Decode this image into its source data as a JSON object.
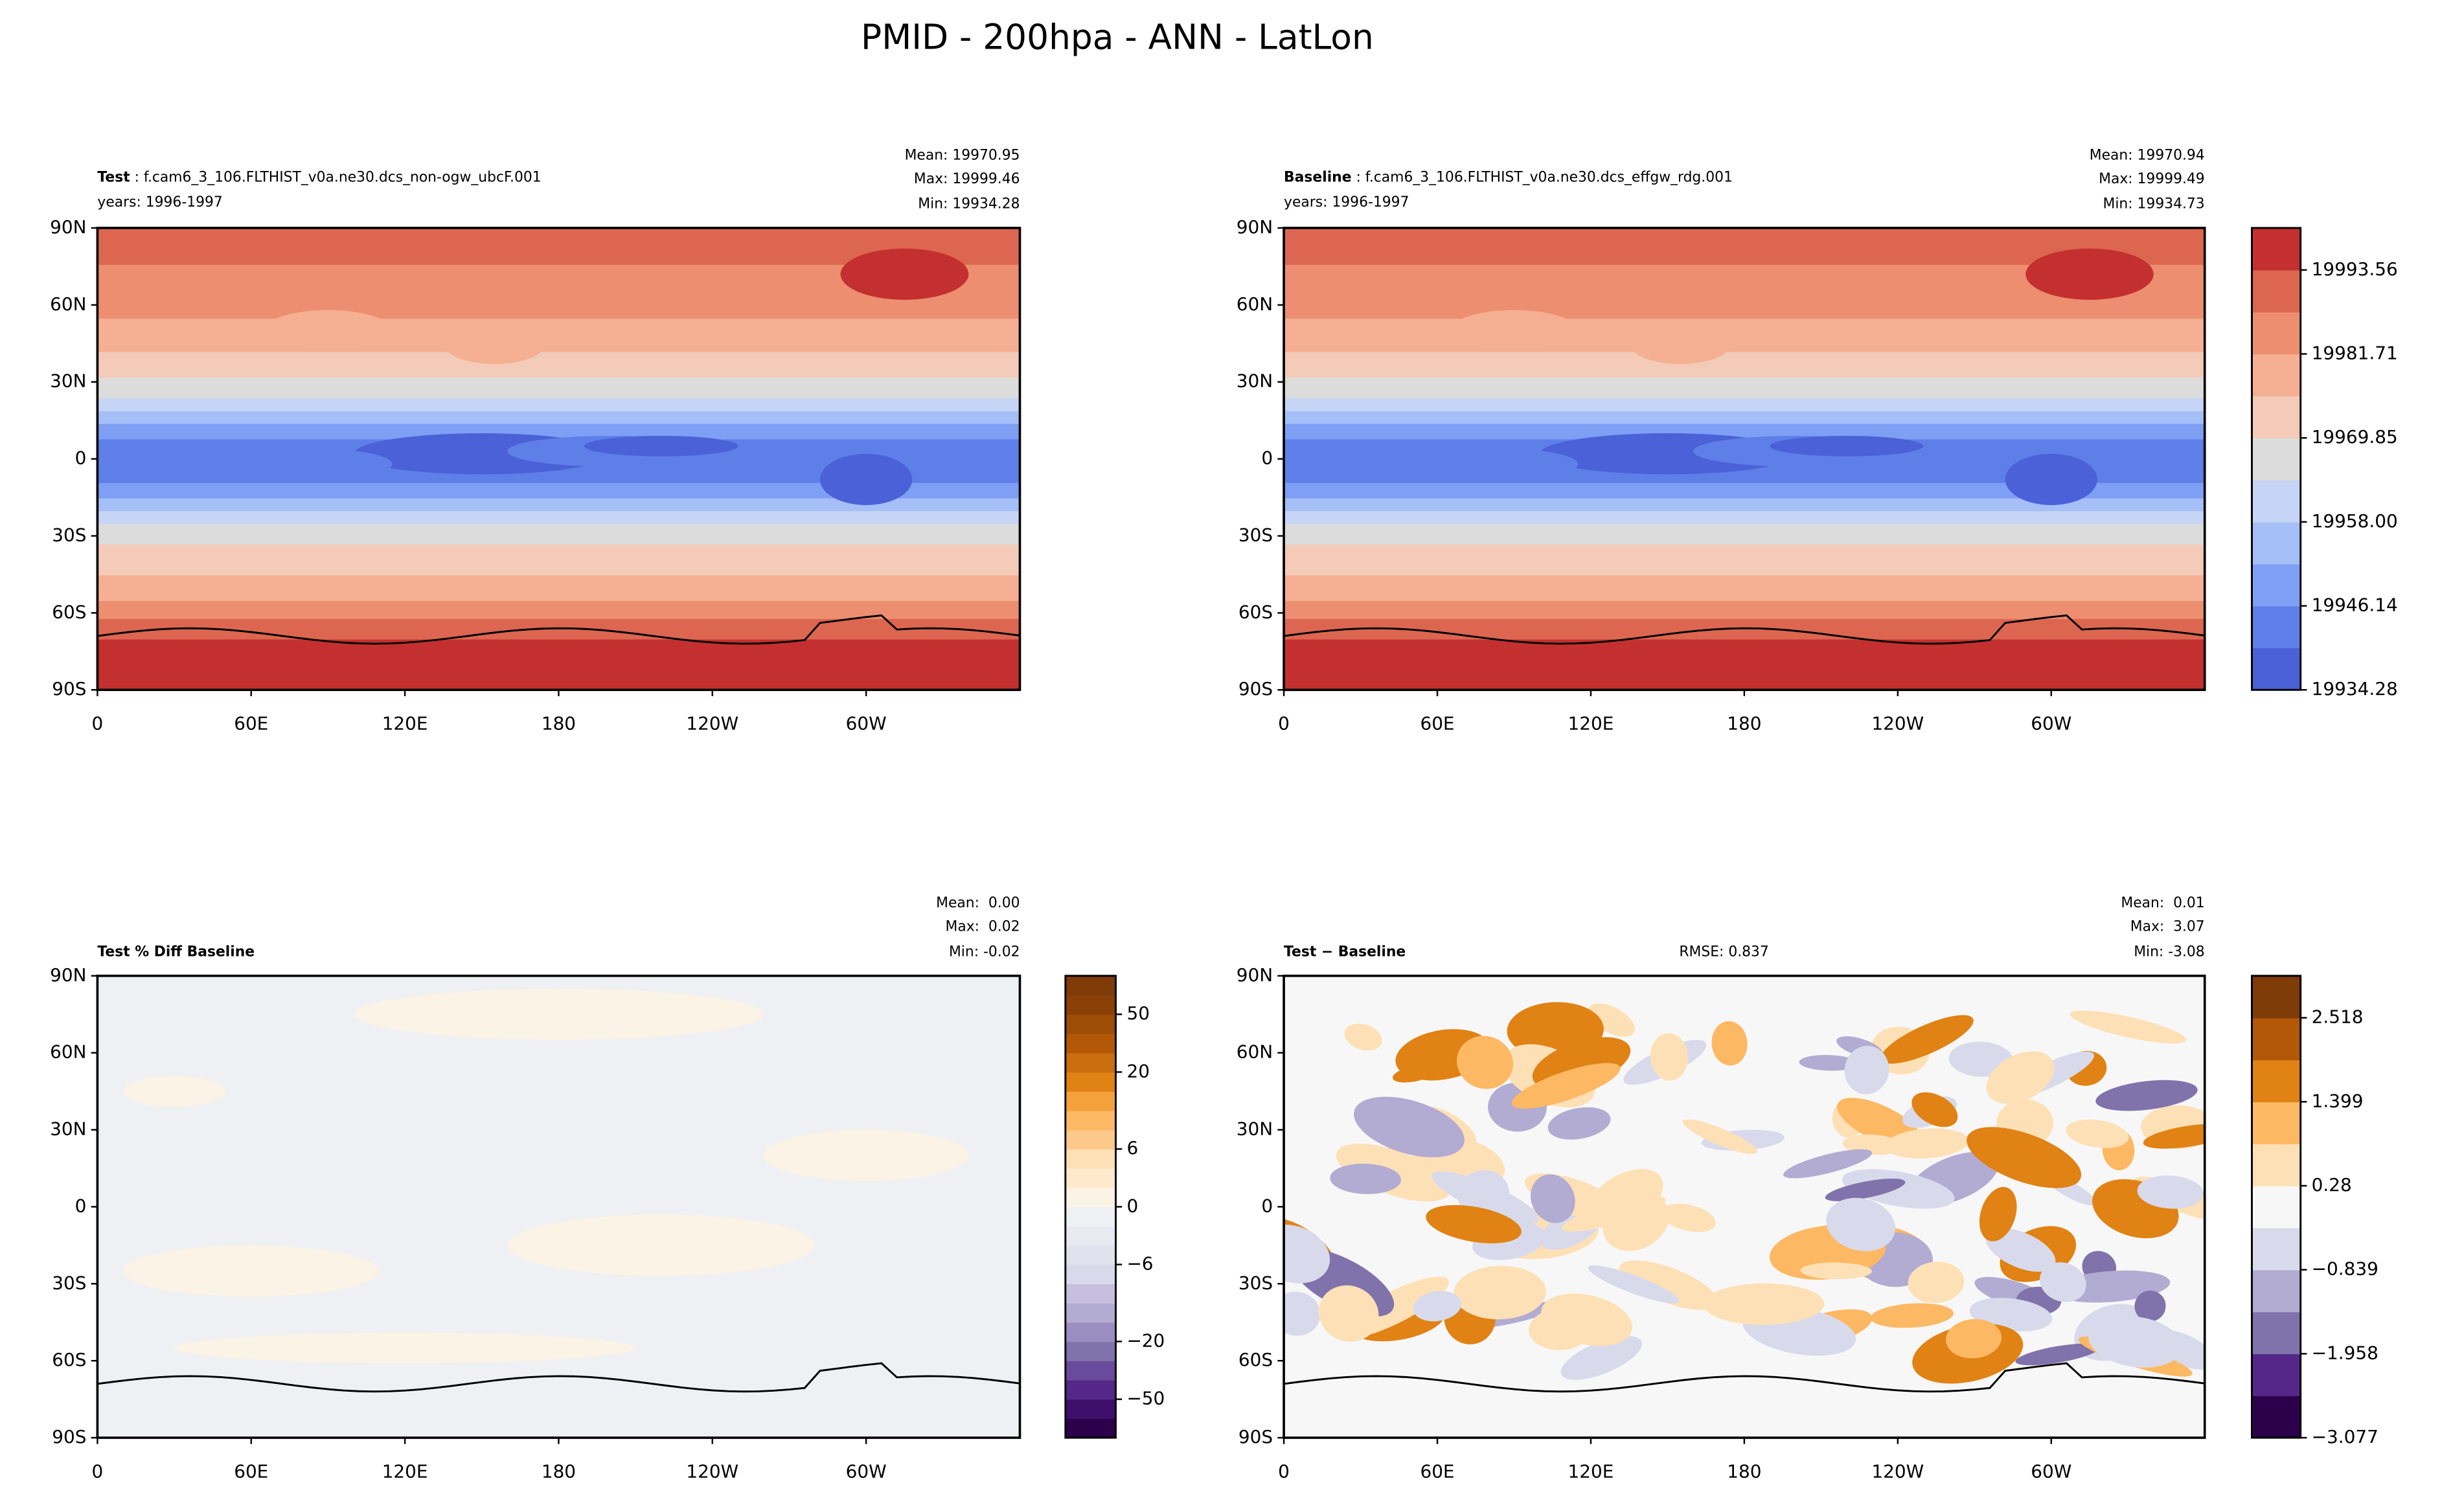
{
  "title": "PMID - 200hpa - ANN - LatLon",
  "chart_data": [
    {
      "type": "contourf",
      "name": "Test",
      "case": " : f.cam6_3_106.FLTHIST_v0a.ne30.dcs_non-ogw_ubcF.001",
      "years": "years: 1996-1997",
      "stats": [
        "Mean: 19970.95",
        "Max: 19999.46",
        "Min: 19934.28"
      ],
      "xlim": [
        0,
        360
      ],
      "ylim": [
        -90,
        90
      ],
      "xticks": [
        0,
        {
          "value": 60,
          "label": "60E"
        },
        {
          "value": 120,
          "label": "120E"
        },
        180,
        {
          "value": 240,
          "label": "120W"
        },
        {
          "value": 300,
          "label": "60W"
        }
      ],
      "yticks": [
        {
          "value": 90,
          "label": "90N"
        },
        {
          "value": 60,
          "label": "60N"
        },
        {
          "value": 30,
          "label": "30N"
        },
        0,
        {
          "value": -30,
          "label": "30S"
        },
        {
          "value": -60,
          "label": "60S"
        },
        {
          "value": -90,
          "label": "90S"
        }
      ]
    },
    {
      "type": "contourf",
      "name": "Baseline",
      "case": " : f.cam6_3_106.FLTHIST_v0a.ne30.dcs_effgw_rdg.001",
      "years": "years: 1996-1997",
      "stats": [
        "Mean: 19970.94",
        "Max: 19999.49",
        "Min: 19934.73"
      ],
      "xlim": [
        0,
        360
      ],
      "ylim": [
        -90,
        90
      ],
      "xticks": [
        0,
        {
          "value": 60,
          "label": "60E"
        },
        {
          "value": 120,
          "label": "120E"
        },
        180,
        {
          "value": 240,
          "label": "120W"
        },
        {
          "value": 300,
          "label": "60W"
        }
      ],
      "yticks": [
        {
          "value": 90,
          "label": "90N"
        },
        {
          "value": 60,
          "label": "60N"
        },
        {
          "value": 30,
          "label": "30N"
        },
        0,
        {
          "value": -30,
          "label": "30S"
        },
        {
          "value": -60,
          "label": "60S"
        },
        {
          "value": -90,
          "label": "90S"
        }
      ],
      "colorbar": {
        "levels": [
          19934.28,
          19940.21,
          19946.14,
          19952.07,
          19958.0,
          19963.92,
          19969.85,
          19975.78,
          19981.71,
          19987.64,
          19993.56,
          19999.49
        ],
        "colors": [
          "#4a61d8",
          "#5f7fe8",
          "#7f9ff5",
          "#a5bff7",
          "#c6d5f5",
          "#dcdcdc",
          "#f3cbb8",
          "#f5af93",
          "#ed8e70",
          "#dc6650",
          "#c4302f"
        ],
        "ticks": [
          19934.28,
          19946.14,
          {
            "value": 19958.0,
            "label": "19958.00"
          },
          19969.85,
          19981.71,
          19993.56
        ]
      }
    },
    {
      "type": "contourf",
      "name": "Test % Diff Baseline",
      "stats": [
        "Mean:  0.00",
        "Max:  0.02",
        "Min: -0.02"
      ],
      "xlim": [
        0,
        360
      ],
      "ylim": [
        -90,
        90
      ],
      "xticks": [
        0,
        {
          "value": 60,
          "label": "60E"
        },
        {
          "value": 120,
          "label": "120E"
        },
        180,
        {
          "value": 240,
          "label": "120W"
        },
        {
          "value": 300,
          "label": "60W"
        }
      ],
      "yticks": [
        {
          "value": 90,
          "label": "90N"
        },
        {
          "value": 60,
          "label": "60N"
        },
        {
          "value": 30,
          "label": "30N"
        },
        0,
        {
          "value": -30,
          "label": "30S"
        },
        {
          "value": -60,
          "label": "60S"
        },
        {
          "value": -90,
          "label": "90S"
        }
      ],
      "colorbar": {
        "levels": [
          -100,
          -75,
          -50,
          -40,
          -30,
          -20,
          -15,
          -10,
          -8,
          -6,
          -4,
          -2,
          0,
          2,
          4,
          6,
          8,
          10,
          15,
          20,
          30,
          40,
          50,
          75,
          100
        ],
        "colors": [
          "#2d004b",
          "#3f0f6b",
          "#542788",
          "#6a4a9c",
          "#8073ac",
          "#9a8fc0",
          "#b2abd2",
          "#c6c0de",
          "#d8daeb",
          "#e2e2ee",
          "#e9e9f1",
          "#eef0f3",
          "#faf3e6",
          "#fde9cc",
          "#fee0b6",
          "#fdc98a",
          "#fdb863",
          "#f4a13c",
          "#e08214",
          "#c96d0f",
          "#b35806",
          "#9c4d06",
          "#8a4006",
          "#7f3b08"
        ],
        "ticks": [
          {
            "value": -50,
            "label": "−50"
          },
          {
            "value": -20,
            "label": "−20"
          },
          {
            "value": -6,
            "label": "−6"
          },
          0,
          6,
          20,
          50
        ]
      }
    },
    {
      "type": "contourf",
      "name": "Test − Baseline",
      "rmse": "RMSE: 0.837",
      "stats": [
        "Mean:  0.01",
        "Max:  3.07",
        "Min: -3.08"
      ],
      "xlim": [
        0,
        360
      ],
      "ylim": [
        -90,
        90
      ],
      "xticks": [
        0,
        {
          "value": 60,
          "label": "60E"
        },
        {
          "value": 120,
          "label": "120E"
        },
        180,
        {
          "value": 240,
          "label": "120W"
        },
        {
          "value": 300,
          "label": "60W"
        }
      ],
      "yticks": [
        {
          "value": 90,
          "label": "90N"
        },
        {
          "value": 60,
          "label": "60N"
        },
        {
          "value": 30,
          "label": "30N"
        },
        0,
        {
          "value": -30,
          "label": "30S"
        },
        {
          "value": -60,
          "label": "60S"
        },
        {
          "value": -90,
          "label": "90S"
        }
      ],
      "colorbar": {
        "levels": [
          -3.077,
          -2.5175,
          -1.958,
          -1.3985,
          -0.839,
          -0.2795,
          0.28,
          0.8395,
          1.399,
          1.9585,
          2.518,
          3.0775
        ],
        "colors": [
          "#2d004b",
          "#542788",
          "#8073ac",
          "#b2abd2",
          "#d8daeb",
          "#f7f7f7",
          "#fee0b6",
          "#fdb863",
          "#e08214",
          "#b35806",
          "#7f3b08"
        ],
        "ticks": [
          {
            "value": -3.077,
            "label": "−3.077"
          },
          {
            "value": -1.958,
            "label": "−1.958"
          },
          {
            "value": -0.839,
            "label": "−0.839"
          },
          0.28,
          1.399,
          2.518
        ]
      }
    }
  ]
}
